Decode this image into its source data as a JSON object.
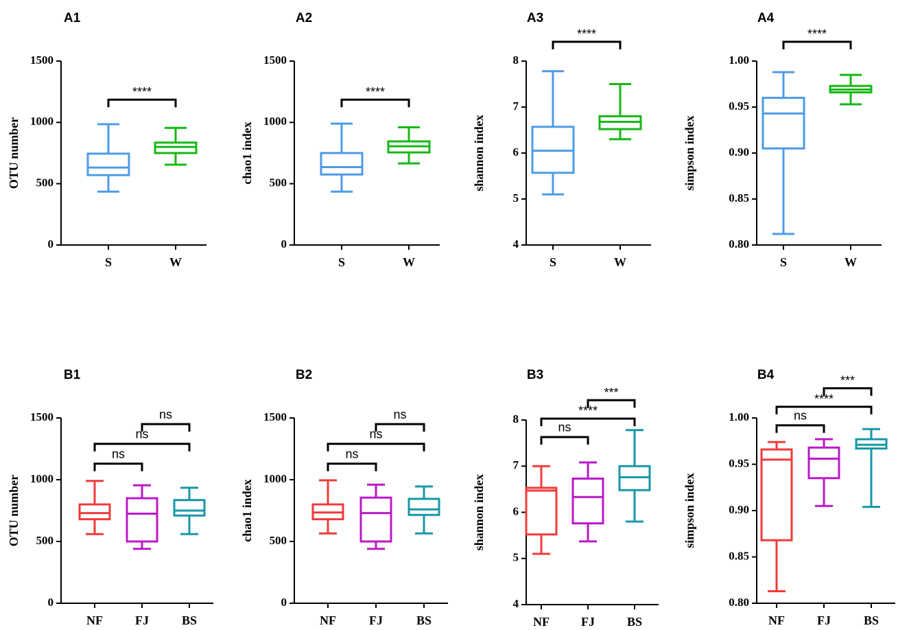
{
  "colors": {
    "S": "#4d9be6",
    "W": "#14b814",
    "NF": "#f03a3a",
    "FJ": "#bb18c8",
    "BS": "#1797a8",
    "axis": "#000000"
  },
  "chart_data": [
    {
      "panel": "A1",
      "type": "box",
      "ylabel": "OTU number",
      "ylim": [
        0,
        1500
      ],
      "yticks": [
        0,
        500,
        1000,
        1500
      ],
      "tick_labels": [
        "0",
        "500",
        "1000",
        "1500"
      ],
      "groups": [
        {
          "name": "S",
          "color_key": "S",
          "min": 435,
          "q1": 570,
          "median": 632,
          "q3": 745,
          "max": 985
        },
        {
          "name": "W",
          "color_key": "W",
          "min": 655,
          "q1": 750,
          "median": 800,
          "q3": 835,
          "max": 955
        }
      ],
      "comparisons": [
        {
          "from": 0,
          "to": 1,
          "label": "****",
          "y": 1185
        }
      ]
    },
    {
      "panel": "A2",
      "type": "box",
      "ylabel": "chao1 index",
      "ylim": [
        0,
        1500
      ],
      "yticks": [
        0,
        500,
        1000,
        1500
      ],
      "tick_labels": [
        "0",
        "500",
        "1000",
        "1500"
      ],
      "groups": [
        {
          "name": "S",
          "color_key": "S",
          "min": 435,
          "q1": 575,
          "median": 635,
          "q3": 750,
          "max": 990
        },
        {
          "name": "W",
          "color_key": "W",
          "min": 665,
          "q1": 755,
          "median": 805,
          "q3": 845,
          "max": 960
        }
      ],
      "comparisons": [
        {
          "from": 0,
          "to": 1,
          "label": "****",
          "y": 1185
        }
      ]
    },
    {
      "panel": "A3",
      "type": "box",
      "ylabel": "shannon index",
      "ylim": [
        4,
        8
      ],
      "yticks": [
        4,
        5,
        6,
        7,
        8
      ],
      "tick_labels": [
        "4",
        "5",
        "6",
        "7",
        "8"
      ],
      "groups": [
        {
          "name": "S",
          "color_key": "S",
          "min": 5.1,
          "q1": 5.57,
          "median": 6.05,
          "q3": 6.57,
          "max": 7.78
        },
        {
          "name": "W",
          "color_key": "W",
          "min": 6.3,
          "q1": 6.52,
          "median": 6.68,
          "q3": 6.8,
          "max": 7.5
        }
      ],
      "comparisons": [
        {
          "from": 0,
          "to": 1,
          "label": "****",
          "y": 8.42
        }
      ]
    },
    {
      "panel": "A4",
      "type": "box",
      "ylabel": "simpson index",
      "ylim": [
        0.8,
        1.0
      ],
      "yticks": [
        0.8,
        0.85,
        0.9,
        0.95,
        1.0
      ],
      "tick_labels": [
        "0.80",
        "0.85",
        "0.90",
        "0.95",
        "1.00"
      ],
      "groups": [
        {
          "name": "S",
          "color_key": "S",
          "min": 0.812,
          "q1": 0.905,
          "median": 0.943,
          "q3": 0.96,
          "max": 0.988
        },
        {
          "name": "W",
          "color_key": "W",
          "min": 0.953,
          "q1": 0.966,
          "median": 0.969,
          "q3": 0.973,
          "max": 0.985
        }
      ],
      "comparisons": [
        {
          "from": 0,
          "to": 1,
          "label": "****",
          "y": 1.021
        }
      ]
    },
    {
      "panel": "B1",
      "type": "box",
      "ylabel": "OTU number",
      "ylim": [
        0,
        1500
      ],
      "yticks": [
        0,
        500,
        1000,
        1500
      ],
      "tick_labels": [
        "0",
        "500",
        "1000",
        "1500"
      ],
      "groups": [
        {
          "name": "NF",
          "color_key": "NF",
          "min": 560,
          "q1": 680,
          "median": 730,
          "q3": 800,
          "max": 990
        },
        {
          "name": "FJ",
          "color_key": "FJ",
          "min": 440,
          "q1": 500,
          "median": 725,
          "q3": 850,
          "max": 955
        },
        {
          "name": "BS",
          "color_key": "BS",
          "min": 560,
          "q1": 710,
          "median": 750,
          "q3": 835,
          "max": 935
        }
      ],
      "comparisons": [
        {
          "from": 0,
          "to": 1,
          "label": "ns",
          "y": 1130
        },
        {
          "from": 0,
          "to": 2,
          "label": "ns",
          "y": 1290
        },
        {
          "from": 1,
          "to": 2,
          "label": "ns",
          "y": 1450
        }
      ]
    },
    {
      "panel": "B2",
      "type": "box",
      "ylabel": "chao1 index",
      "ylim": [
        0,
        1500
      ],
      "yticks": [
        0,
        500,
        1000,
        1500
      ],
      "tick_labels": [
        "0",
        "500",
        "1000",
        "1500"
      ],
      "groups": [
        {
          "name": "NF",
          "color_key": "NF",
          "min": 565,
          "q1": 680,
          "median": 735,
          "q3": 800,
          "max": 995
        },
        {
          "name": "FJ",
          "color_key": "FJ",
          "min": 440,
          "q1": 500,
          "median": 730,
          "q3": 855,
          "max": 960
        },
        {
          "name": "BS",
          "color_key": "BS",
          "min": 565,
          "q1": 715,
          "median": 760,
          "q3": 845,
          "max": 945
        }
      ],
      "comparisons": [
        {
          "from": 0,
          "to": 1,
          "label": "ns",
          "y": 1130
        },
        {
          "from": 0,
          "to": 2,
          "label": "ns",
          "y": 1290
        },
        {
          "from": 1,
          "to": 2,
          "label": "ns",
          "y": 1450
        }
      ]
    },
    {
      "panel": "B3",
      "type": "box",
      "ylabel": "shannon index",
      "ylim": [
        4,
        8
      ],
      "yticks": [
        4,
        5,
        6,
        7,
        8
      ],
      "tick_labels": [
        "4",
        "5",
        "6",
        "7",
        "8"
      ],
      "groups": [
        {
          "name": "NF",
          "color_key": "NF",
          "min": 5.1,
          "q1": 5.52,
          "median": 6.47,
          "q3": 6.53,
          "max": 7.0
        },
        {
          "name": "FJ",
          "color_key": "FJ",
          "min": 5.37,
          "q1": 5.76,
          "median": 6.33,
          "q3": 6.73,
          "max": 7.08
        },
        {
          "name": "BS",
          "color_key": "BS",
          "min": 5.8,
          "q1": 6.48,
          "median": 6.76,
          "q3": 7.0,
          "max": 7.78
        }
      ],
      "comparisons": [
        {
          "from": 0,
          "to": 1,
          "label": "ns",
          "y": 7.63
        },
        {
          "from": 0,
          "to": 2,
          "label": "****",
          "y": 8.03
        },
        {
          "from": 1,
          "to": 2,
          "label": "***",
          "y": 8.43
        }
      ]
    },
    {
      "panel": "B4",
      "type": "box",
      "ylabel": "simpson index",
      "ylim": [
        0.8,
        1.0
      ],
      "yticks": [
        0.8,
        0.85,
        0.9,
        0.95,
        1.0
      ],
      "tick_labels": [
        "0.80",
        "0.85",
        "0.90",
        "0.95",
        "1.00"
      ],
      "groups": [
        {
          "name": "NF",
          "color_key": "NF",
          "min": 0.813,
          "q1": 0.868,
          "median": 0.955,
          "q3": 0.966,
          "max": 0.974
        },
        {
          "name": "FJ",
          "color_key": "FJ",
          "min": 0.905,
          "q1": 0.935,
          "median": 0.956,
          "q3": 0.968,
          "max": 0.977
        },
        {
          "name": "BS",
          "color_key": "BS",
          "min": 0.904,
          "q1": 0.967,
          "median": 0.971,
          "q3": 0.977,
          "max": 0.988
        }
      ],
      "comparisons": [
        {
          "from": 0,
          "to": 1,
          "label": "ns",
          "y": 0.992
        },
        {
          "from": 0,
          "to": 2,
          "label": "****",
          "y": 1.012
        },
        {
          "from": 1,
          "to": 2,
          "label": "***",
          "y": 1.032
        }
      ]
    }
  ]
}
